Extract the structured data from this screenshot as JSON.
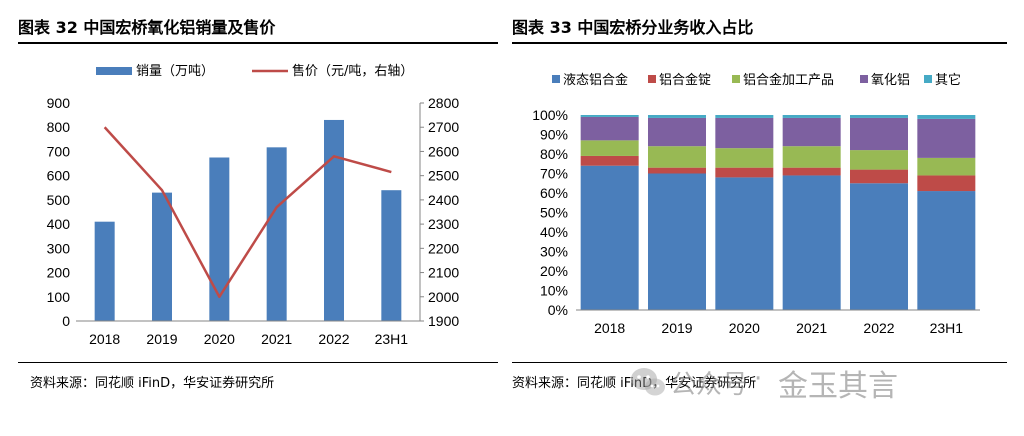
{
  "left": {
    "title": "图表 32  中国宏桥氧化铝销量及售价",
    "source": "资料来源：同花顺 iFinD，华安证券研究所"
  },
  "right": {
    "title": "图表 33  中国宏桥分业务收入占比",
    "source": "资料来源：同花顺 iFinD，华安证券研究所"
  },
  "watermark": {
    "icon": "wechat-icon",
    "text1": "公众号",
    "separator": "·",
    "text2": "金玉其言"
  },
  "colors": {
    "bar": "#4a7ebb",
    "line": "#be4b48",
    "liquid": "#4a7ebb",
    "ingot": "#be4b48",
    "processed": "#98b954",
    "alumina": "#7d60a0",
    "other": "#46aac5"
  },
  "chart_data": [
    {
      "type": "bar+line",
      "categories": [
        "2018",
        "2019",
        "2020",
        "2021",
        "2022",
        "23H1"
      ],
      "series": [
        {
          "name": "销量（万吨）",
          "type": "bar",
          "axis": "left",
          "values": [
            410,
            530,
            675,
            717,
            830,
            540
          ]
        },
        {
          "name": "售价（元/吨，右轴）",
          "type": "line",
          "axis": "right",
          "values": [
            2700,
            2440,
            2000,
            2370,
            2580,
            2515
          ]
        }
      ],
      "yleft": {
        "range": [
          0,
          900
        ],
        "ticks": [
          "0",
          "100",
          "200",
          "300",
          "400",
          "500",
          "600",
          "700",
          "800",
          "900"
        ]
      },
      "yright": {
        "range": [
          1900,
          2800
        ],
        "ticks": [
          "1900",
          "2000",
          "2100",
          "2200",
          "2300",
          "2400",
          "2500",
          "2600",
          "2700",
          "2800"
        ]
      },
      "legend_position": "top"
    },
    {
      "type": "stacked-bar-100",
      "categories": [
        "2018",
        "2019",
        "2020",
        "2021",
        "2022",
        "23H1"
      ],
      "series": [
        {
          "name": "液态铝合金",
          "values": [
            74,
            70,
            68,
            69,
            65,
            61
          ]
        },
        {
          "name": "铝合金锭",
          "values": [
            5,
            3,
            5,
            4,
            7,
            8
          ]
        },
        {
          "name": "铝合金加工产品",
          "values": [
            8,
            11,
            10,
            11,
            10,
            9
          ]
        },
        {
          "name": "氧化铝",
          "values": [
            12,
            14.5,
            15.5,
            14.5,
            16.5,
            20
          ]
        },
        {
          "name": "其它",
          "values": [
            1,
            1.5,
            1.5,
            1.5,
            1.5,
            2
          ]
        }
      ],
      "yaxis": {
        "range": [
          0,
          100
        ],
        "ticks": [
          "0%",
          "10%",
          "20%",
          "30%",
          "40%",
          "50%",
          "60%",
          "70%",
          "80%",
          "90%",
          "100%"
        ]
      },
      "legend_position": "top"
    }
  ]
}
